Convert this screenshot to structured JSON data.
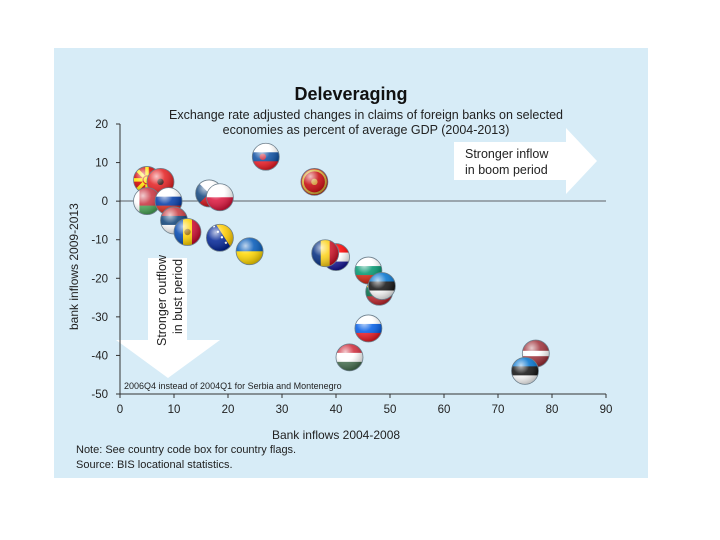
{
  "chart_data": {
    "type": "scatter",
    "title": "Deleveraging",
    "subtitle_lines": [
      "Exchange rate adjusted changes in claims of foreign banks on selected",
      "economies as percent of average GDP (2004-2013)"
    ],
    "xlabel": "Bank inflows 2004-2008",
    "ylabel": "bank inflows 2009-2013",
    "xlim": [
      0,
      90
    ],
    "ylim": [
      -50,
      20
    ],
    "xticks": [
      0,
      10,
      20,
      30,
      40,
      50,
      60,
      70,
      80,
      90
    ],
    "yticks": [
      -50,
      -40,
      -30,
      -20,
      -10,
      0,
      10,
      20
    ],
    "annotations": {
      "boom_lines": [
        "Stronger inflow",
        "in boom period"
      ],
      "bust_lines": [
        "Stronger outflow",
        "in bust period"
      ],
      "footnote": "2006Q4 instead of 2004Q1 for Serbia and Montenegro"
    },
    "notes": [
      "Note: See country code box for country flags.",
      "Source: BIS locational statistics."
    ],
    "points": [
      {
        "flag": "macedonia",
        "x": 5,
        "y": 5.5
      },
      {
        "flag": "albania",
        "x": 7.5,
        "y": 5
      },
      {
        "flag": "belarus",
        "x": 5,
        "y": 0
      },
      {
        "flag": "russia",
        "x": 9,
        "y": 0
      },
      {
        "flag": "serbia",
        "x": 10,
        "y": -5
      },
      {
        "flag": "moldova",
        "x": 12.5,
        "y": -8
      },
      {
        "flag": "czech",
        "x": 16.5,
        "y": 2
      },
      {
        "flag": "poland",
        "x": 18.5,
        "y": 1
      },
      {
        "flag": "bosnia",
        "x": 18.5,
        "y": -9.5
      },
      {
        "flag": "ukraine",
        "x": 24,
        "y": -13
      },
      {
        "flag": "slovakia",
        "x": 27,
        "y": 11.5
      },
      {
        "flag": "montenegro",
        "x": 36,
        "y": 5
      },
      {
        "flag": "croatia",
        "x": 40,
        "y": -14.5
      },
      {
        "flag": "romania",
        "x": 38,
        "y": -13.5
      },
      {
        "flag": "bulgaria",
        "x": 46,
        "y": -18
      },
      {
        "flag": "lithuania",
        "x": 48,
        "y": -23.5
      },
      {
        "flag": "estonia",
        "x": 48.5,
        "y": -22
      },
      {
        "flag": "slovenia",
        "x": 46,
        "y": -33
      },
      {
        "flag": "hungary",
        "x": 42.5,
        "y": -40.5
      },
      {
        "flag": "latvia",
        "x": 77,
        "y": -39.5
      },
      {
        "flag": "estonia",
        "x": 75,
        "y": -44
      }
    ]
  },
  "colors": {
    "panel": "#d7ecf7",
    "arrow": "#ffffff",
    "axis": "#333333"
  }
}
